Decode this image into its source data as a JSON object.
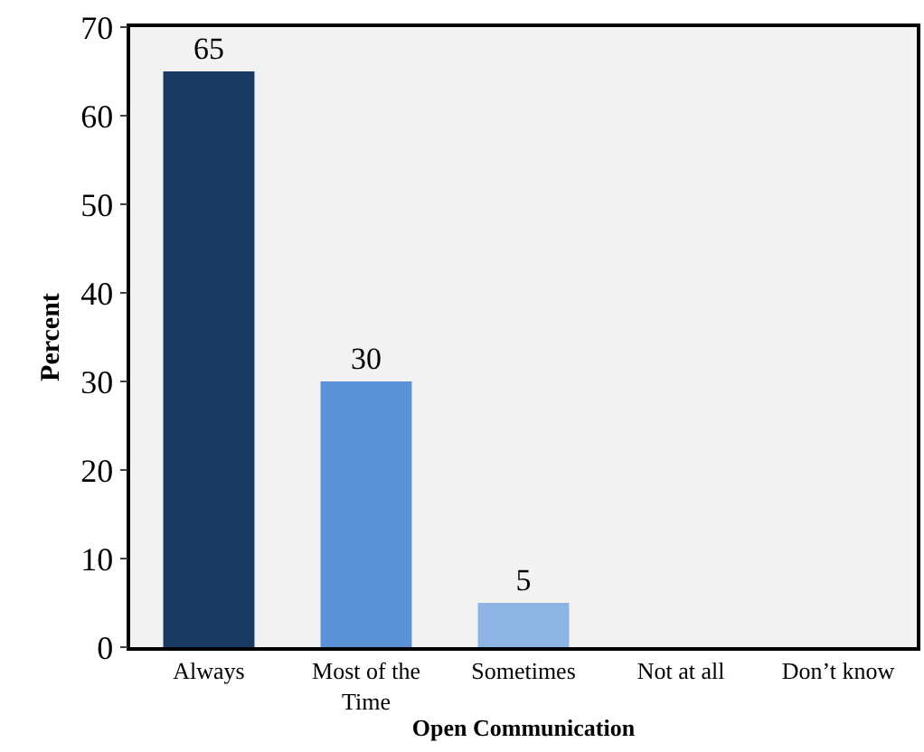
{
  "chart_data": {
    "type": "bar",
    "xlabel": "Open Communication",
    "ylabel": "Percent",
    "categories": [
      "Always",
      "Most of the Time",
      "Sometimes",
      "Not at all",
      "Don’t know"
    ],
    "values": [
      65,
      30,
      5,
      0,
      0
    ],
    "colors": [
      "#1b3a63",
      "#5b91d6",
      "#8eb4e3",
      "#8eb4e3",
      "#8eb4e3"
    ],
    "value_labels": [
      "65",
      "30",
      "5",
      null,
      null
    ],
    "ylim": [
      0,
      70
    ],
    "yticks": [
      0,
      10,
      20,
      30,
      40,
      50,
      60,
      70
    ],
    "grid": false
  }
}
